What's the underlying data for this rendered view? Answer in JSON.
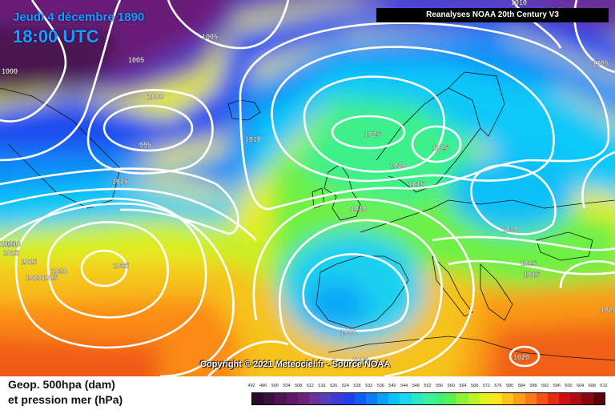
{
  "header": {
    "date": "Jeudi 4 décembre 1890",
    "time": "18:00 UTC",
    "source_title": "Reanalyses NOAA 20th Century V3"
  },
  "copyright": "Copyright © 2021 Meteociel.fr - Source NOAA",
  "legend": {
    "title_line1": "Geop. 500hpa (dam)",
    "title_line2": "et pression mer (hPa)",
    "scale_values": [
      "492",
      "496",
      "500",
      "504",
      "508",
      "512",
      "516",
      "520",
      "524",
      "528",
      "532",
      "536",
      "540",
      "544",
      "548",
      "552",
      "556",
      "560",
      "564",
      "568",
      "572",
      "576",
      "580",
      "584",
      "588",
      "592",
      "596",
      "600",
      "604",
      "608",
      "612"
    ],
    "scale_colors": [
      "#2a0a2a",
      "#3c0f3e",
      "#4e1552",
      "#5f1a66",
      "#70207c",
      "#6a2f9a",
      "#5a3cb8",
      "#3a3ad6",
      "#1d3fee",
      "#0f5cf5",
      "#0a7cf8",
      "#07a0fb",
      "#07c3fd",
      "#1ad7f0",
      "#2ee6c8",
      "#3df0a0",
      "#3ff07a",
      "#5ef04e",
      "#8ff036",
      "#bdf228",
      "#e6f020",
      "#fbe41e",
      "#fdc21c",
      "#fd9e1a",
      "#fb7a17",
      "#f45214",
      "#e82a12",
      "#d01010",
      "#ae0c10",
      "#880810",
      "#5a0408"
    ]
  },
  "isobar_labels": [
    "1005",
    "1000",
    "1005",
    "995",
    "1000",
    "1010",
    "1025",
    "1025",
    "1020",
    "1015",
    "1010",
    "1010",
    "1015",
    "1015",
    "1010",
    "1030",
    "1035",
    "1020",
    "1025",
    "1015",
    "1015",
    "1000",
    "1005",
    "1020",
    "1010",
    "1005",
    "1015",
    "1010",
    "1020"
  ]
}
